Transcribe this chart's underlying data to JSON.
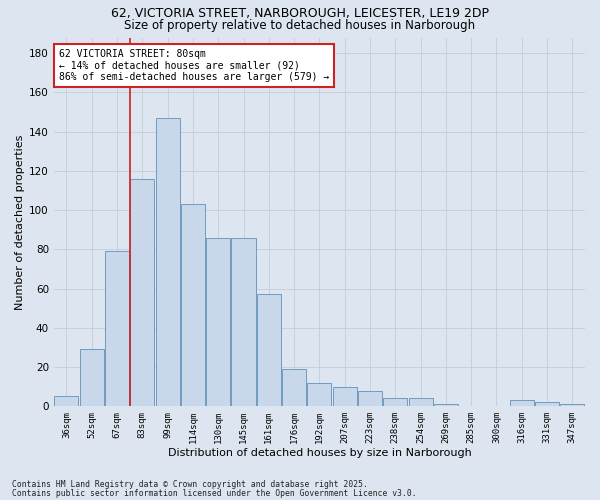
{
  "title_line1": "62, VICTORIA STREET, NARBOROUGH, LEICESTER, LE19 2DP",
  "title_line2": "Size of property relative to detached houses in Narborough",
  "xlabel": "Distribution of detached houses by size in Narborough",
  "ylabel": "Number of detached properties",
  "categories": [
    "36sqm",
    "52sqm",
    "67sqm",
    "83sqm",
    "99sqm",
    "114sqm",
    "130sqm",
    "145sqm",
    "161sqm",
    "176sqm",
    "192sqm",
    "207sqm",
    "223sqm",
    "238sqm",
    "254sqm",
    "269sqm",
    "285sqm",
    "300sqm",
    "316sqm",
    "331sqm",
    "347sqm"
  ],
  "values": [
    5,
    29,
    79,
    116,
    147,
    103,
    86,
    86,
    57,
    19,
    12,
    10,
    8,
    4,
    4,
    1,
    0,
    0,
    3,
    2,
    1
  ],
  "bar_color": "#c8d8ea",
  "bar_edge_color": "#6090b8",
  "grid_color": "#c5cdd8",
  "bg_color": "#dde6f0",
  "vline_color": "#cc2222",
  "annotation_text": "62 VICTORIA STREET: 80sqm\n← 14% of detached houses are smaller (92)\n86% of semi-detached houses are larger (579) →",
  "annotation_box_color": "#ffffff",
  "annotation_edge_color": "#cc2222",
  "annotation_fontsize": 7,
  "footer_line1": "Contains HM Land Registry data © Crown copyright and database right 2025.",
  "footer_line2": "Contains public sector information licensed under the Open Government Licence v3.0.",
  "ylim": [
    0,
    188
  ],
  "yticks": [
    0,
    20,
    40,
    60,
    80,
    100,
    120,
    140,
    160,
    180
  ]
}
